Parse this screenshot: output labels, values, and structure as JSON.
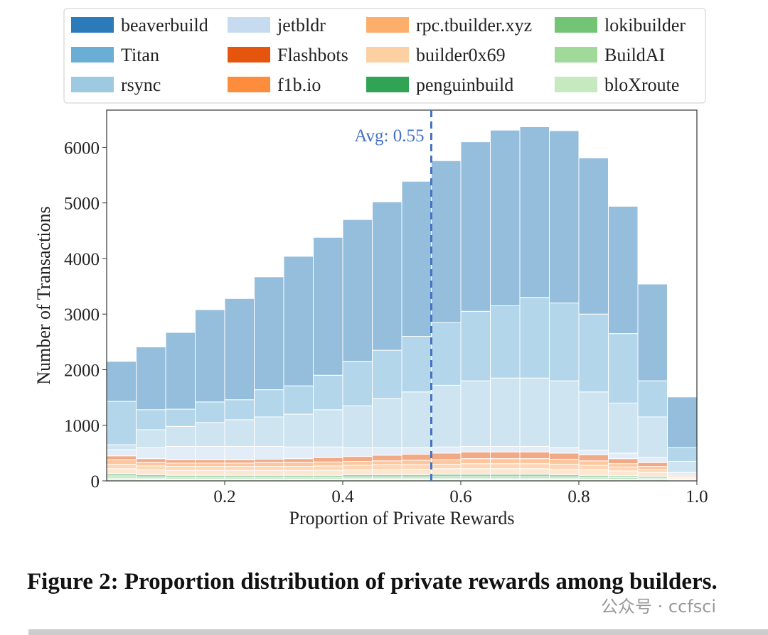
{
  "chart_data": {
    "type": "stacked-histogram",
    "xlabel": "Proportion of Private Rewards",
    "ylabel": "Number of Transactions",
    "bins": [
      0,
      0.05,
      0.1,
      0.15,
      0.2,
      0.25,
      0.3,
      0.35,
      0.4,
      0.45,
      0.5,
      0.55,
      0.6,
      0.65,
      0.7,
      0.75,
      0.8,
      0.85,
      0.9,
      0.95,
      1.0
    ],
    "xlim": [
      0,
      1
    ],
    "ylim": [
      0,
      6670
    ],
    "xticks": [
      0.2,
      0.4,
      0.6,
      0.8,
      {
        "value": 1,
        "label": "1.0"
      }
    ],
    "yticks": [
      0,
      1000,
      2000,
      3000,
      4000,
      5000,
      6000
    ],
    "avg_line": {
      "value": 0.55,
      "label": "Avg: 0.55",
      "color": "#4472c4"
    },
    "series": [
      {
        "name": "beaverbuild",
        "color": "#2b7bba",
        "values": [
          720,
          1130,
          1380,
          1660,
          1820,
          2030,
          2330,
          2480,
          2550,
          2670,
          2790,
          2910,
          3050,
          3160,
          3070,
          3100,
          2810,
          2290,
          1740,
          910
        ]
      },
      {
        "name": "Titan",
        "color": "#6aaed6",
        "values": [
          780,
          360,
          310,
          370,
          360,
          490,
          510,
          620,
          800,
          870,
          1000,
          1130,
          1250,
          1300,
          1450,
          1400,
          1400,
          1250,
          650,
          250
        ]
      },
      {
        "name": "rsync",
        "color": "#9ecae1",
        "values": [
          90,
          320,
          360,
          430,
          480,
          530,
          590,
          670,
          750,
          880,
          1000,
          1110,
          1180,
          1230,
          1230,
          1200,
          1050,
          900,
          730,
          200
        ]
      },
      {
        "name": "jetbldr",
        "color": "#c6dbef",
        "values": [
          110,
          200,
          240,
          240,
          240,
          230,
          210,
          190,
          160,
          140,
          120,
          110,
          100,
          100,
          100,
          100,
          80,
          100,
          90,
          50
        ]
      },
      {
        "name": "Flashbots",
        "color": "#e6550d",
        "values": [
          70,
          70,
          60,
          60,
          60,
          60,
          70,
          80,
          90,
          100,
          110,
          120,
          120,
          120,
          120,
          110,
          110,
          90,
          70,
          20
        ]
      },
      {
        "name": "f1b.io",
        "color": "#fd8d3c",
        "values": [
          80,
          60,
          60,
          60,
          60,
          70,
          70,
          70,
          70,
          70,
          80,
          80,
          90,
          90,
          90,
          90,
          80,
          60,
          60,
          20
        ]
      },
      {
        "name": "rpc.tbuilder.xyz",
        "color": "#fdae6b",
        "values": [
          80,
          70,
          70,
          70,
          70,
          70,
          70,
          80,
          80,
          90,
          80,
          80,
          90,
          90,
          90,
          90,
          80,
          70,
          50,
          20
        ]
      },
      {
        "name": "builder0x69",
        "color": "#fdd0a2",
        "values": [
          90,
          90,
          90,
          90,
          90,
          90,
          90,
          90,
          90,
          90,
          100,
          100,
          100,
          100,
          100,
          100,
          100,
          90,
          70,
          15
        ]
      },
      {
        "name": "penguinbuild",
        "color": "#31a354",
        "values": [
          40,
          40,
          35,
          35,
          35,
          35,
          35,
          35,
          40,
          40,
          40,
          45,
          45,
          45,
          45,
          40,
          35,
          30,
          30,
          10
        ]
      },
      {
        "name": "lokibuilder",
        "color": "#74c476",
        "values": [
          40,
          30,
          30,
          30,
          30,
          30,
          30,
          30,
          30,
          30,
          30,
          35,
          35,
          35,
          35,
          30,
          30,
          30,
          25,
          7
        ]
      },
      {
        "name": "BuildAI",
        "color": "#a1d99b",
        "values": [
          30,
          20,
          15,
          15,
          15,
          15,
          15,
          15,
          20,
          20,
          20,
          20,
          20,
          20,
          20,
          20,
          15,
          10,
          5,
          4
        ]
      },
      {
        "name": "bloXroute",
        "color": "#c7e9c0",
        "values": [
          20,
          20,
          20,
          20,
          20,
          20,
          20,
          20,
          20,
          20,
          20,
          20,
          20,
          20,
          20,
          20,
          20,
          20,
          20,
          4
        ]
      }
    ]
  },
  "caption": "Figure 2: Proportion distribution of private rewards among builders.",
  "watermark": "公众号 · ccfsci"
}
